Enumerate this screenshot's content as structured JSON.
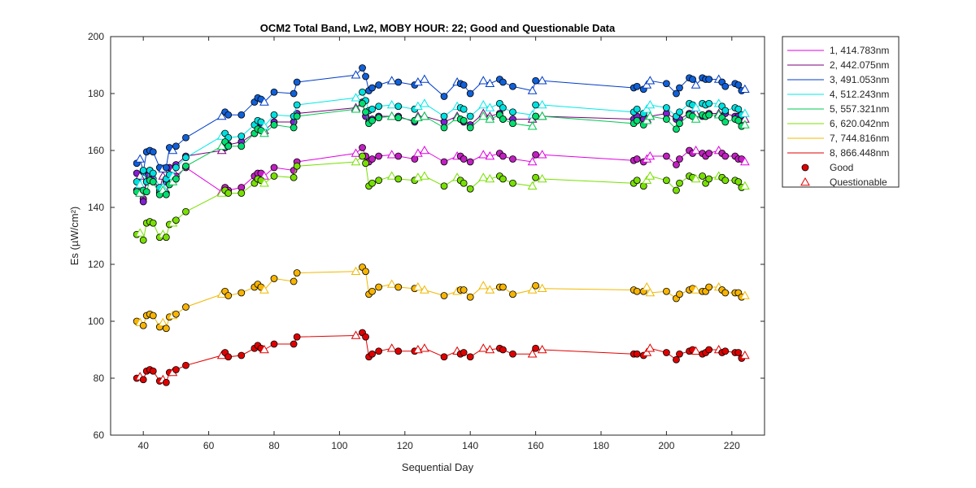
{
  "chart_data": {
    "type": "line",
    "title": "OCM2 Total Band,  Lw2, MOBY HOUR: 22;  Good and Questionable Data",
    "xlabel": "Sequential Day",
    "ylabel": "Es (µW/cm²)",
    "xlim": [
      30,
      230
    ],
    "ylim": [
      60,
      200
    ],
    "xticks": [
      40,
      60,
      80,
      100,
      120,
      140,
      160,
      180,
      200,
      220
    ],
    "yticks": [
      60,
      80,
      100,
      120,
      140,
      160,
      180,
      200
    ],
    "grid": false,
    "legend_position": "outside-top-right",
    "x": [
      38,
      39,
      40,
      41,
      42,
      43,
      45,
      46,
      47,
      48,
      49,
      50,
      53,
      64,
      65,
      66,
      70,
      74,
      75,
      76,
      77,
      80,
      86,
      87,
      105,
      107,
      108,
      109,
      110,
      112,
      116,
      118,
      123,
      124,
      126,
      132,
      136,
      137,
      138,
      140,
      144,
      146,
      149,
      150,
      153,
      159,
      160,
      162,
      190,
      191,
      193,
      194,
      195,
      200,
      203,
      204,
      207,
      208,
      209,
      211,
      212,
      213,
      216,
      217,
      218,
      221,
      222,
      223,
      224
    ],
    "quality": [
      "G",
      "Q",
      "G",
      "G",
      "G",
      "G",
      "G",
      "Q",
      "G",
      "G",
      "Q",
      "G",
      "G",
      "Q",
      "G",
      "G",
      "G",
      "G",
      "G",
      "G",
      "Q",
      "G",
      "G",
      "G",
      "Q",
      "G",
      "G",
      "G",
      "G",
      "G",
      "Q",
      "G",
      "G",
      "Q",
      "Q",
      "G",
      "Q",
      "G",
      "G",
      "G",
      "Q",
      "Q",
      "G",
      "G",
      "G",
      "Q",
      "G",
      "Q",
      "G",
      "G",
      "G",
      "Q",
      "Q",
      "G",
      "G",
      "G",
      "G",
      "G",
      "Q",
      "G",
      "G",
      "G",
      "Q",
      "G",
      "G",
      "G",
      "G",
      "G",
      "Q"
    ],
    "series": [
      {
        "name": "1, 414.783nm",
        "color": "#e000e0",
        "marker_color": "#c020c0",
        "values": [
          146,
          145,
          143,
          149,
          150,
          149,
          145,
          146,
          145,
          150,
          150,
          151,
          154,
          145.5,
          147,
          146,
          147,
          151,
          152,
          152,
          151,
          154,
          153,
          156,
          159,
          161,
          158,
          156,
          157,
          158,
          158.5,
          158,
          157,
          159,
          160,
          156,
          158,
          158,
          157,
          156,
          158.5,
          158,
          159,
          158,
          157,
          156,
          158.5,
          158.5,
          156.5,
          157,
          156,
          157,
          158,
          158,
          155,
          157,
          160,
          159,
          160,
          159,
          158,
          159,
          160,
          159,
          158,
          158,
          157,
          157,
          156
        ]
      },
      {
        "name": "2, 442.075nm",
        "color": "#7a007a",
        "marker_color": "#8020d0",
        "values": [
          152,
          151,
          142,
          152,
          153,
          150,
          146,
          151,
          149,
          154,
          153,
          155,
          158,
          160,
          161,
          162,
          163,
          166,
          168,
          168,
          167,
          170,
          170,
          173,
          175,
          177,
          172,
          170,
          171,
          172,
          172,
          172,
          170,
          172,
          172,
          170,
          172,
          171,
          170,
          169,
          173,
          172,
          173,
          171,
          171,
          171,
          172,
          172,
          171,
          172,
          171,
          171,
          172,
          173,
          171,
          171,
          173,
          173,
          173,
          172,
          172,
          173,
          173,
          172,
          173,
          172,
          172,
          171,
          171
        ]
      },
      {
        "name": "3, 491.053nm",
        "color": "#003cc8",
        "marker_color": "#1060d8",
        "values": [
          155.5,
          157,
          152.5,
          159.5,
          160,
          159.5,
          154,
          153.5,
          154,
          161,
          160,
          161.5,
          164.5,
          172,
          173.5,
          172.5,
          172.5,
          177,
          178.5,
          178,
          177,
          180.5,
          180,
          184,
          186.5,
          189,
          186,
          181,
          182,
          183,
          184.5,
          184,
          183,
          184,
          185,
          179,
          184,
          183.5,
          183,
          180,
          184.5,
          183.5,
          185,
          184,
          182.5,
          181,
          184.5,
          184.5,
          182,
          182.5,
          181.5,
          183,
          184.5,
          183.5,
          180,
          182,
          185.5,
          185,
          183,
          185.5,
          185,
          185,
          185,
          184,
          182.5,
          183.5,
          183,
          181,
          181.5
        ]
      },
      {
        "name": "4, 512.243nm",
        "color": "#00e8e8",
        "marker_color": "#00e0e0",
        "values": [
          149,
          148,
          153,
          149,
          153,
          152,
          147,
          147,
          150,
          151.5,
          151,
          154,
          157.5,
          165,
          166,
          164.5,
          165,
          169,
          170.5,
          170,
          168.5,
          172.5,
          172,
          176,
          178.5,
          180.5,
          177.5,
          174,
          174.5,
          175.5,
          176,
          175.5,
          174.5,
          175.5,
          176.5,
          172,
          175.5,
          175,
          174.5,
          172,
          176,
          175,
          176.5,
          175,
          173.5,
          172.5,
          176,
          176,
          173.5,
          174.5,
          173,
          174.5,
          176,
          175,
          172,
          173.5,
          176.5,
          176,
          175,
          176.5,
          176,
          176.5,
          176.5,
          175.5,
          174,
          175,
          174.5,
          172.5,
          173
        ]
      },
      {
        "name": "5, 557.321nm",
        "color": "#00c850",
        "marker_color": "#00e070",
        "values": [
          145.5,
          145,
          146,
          145.5,
          149.5,
          149,
          144.5,
          146,
          144.5,
          148,
          149,
          150,
          154.5,
          161.5,
          163,
          161.5,
          161.5,
          166,
          167.5,
          167,
          166,
          169,
          168,
          172,
          174.5,
          176.5,
          173.5,
          169.5,
          170.5,
          171.5,
          172,
          171.5,
          170.5,
          171.5,
          172,
          168,
          171.5,
          171,
          170.5,
          168,
          172,
          171,
          172.5,
          171,
          169.5,
          168.5,
          172,
          172,
          169.5,
          170.5,
          169,
          170.5,
          172,
          171,
          167.5,
          169.5,
          172.5,
          172,
          171,
          172.5,
          172,
          172.5,
          172.5,
          171.5,
          170,
          171,
          170.5,
          168.5,
          169
        ]
      },
      {
        "name": "6, 620.042nm",
        "color": "#78e000",
        "marker_color": "#78e000",
        "values": [
          130.5,
          131,
          128.5,
          134.5,
          135,
          134.5,
          129.5,
          130.5,
          129.5,
          134,
          134.5,
          135.5,
          138.5,
          145,
          146,
          145,
          145,
          148.5,
          150,
          149.5,
          148.5,
          151,
          150.5,
          154.5,
          156,
          158,
          155.5,
          147.5,
          148.5,
          149.5,
          151,
          150,
          149.5,
          150.5,
          151,
          147.5,
          150.5,
          149.5,
          148.5,
          146.5,
          150.5,
          150,
          151,
          150,
          148.5,
          147.5,
          150.5,
          150,
          148.5,
          149.5,
          147.5,
          149.5,
          151,
          149.5,
          146,
          148.5,
          151,
          150.5,
          150,
          151,
          148.5,
          150,
          151,
          150.5,
          149.5,
          149.5,
          149,
          147,
          147.5
        ]
      },
      {
        "name": "7, 744.816nm",
        "color": "#f0b800",
        "marker_color": "#f8b400",
        "values": [
          100,
          99.5,
          98.5,
          102,
          102.5,
          102,
          98,
          99.5,
          97.5,
          101.5,
          102,
          102.5,
          105,
          109.5,
          110.5,
          109,
          110,
          112,
          113,
          112,
          111,
          115,
          114,
          117,
          117.5,
          119,
          117.5,
          109.5,
          110.5,
          112,
          113,
          112,
          111.5,
          112,
          111,
          109,
          110.5,
          111,
          111,
          108.5,
          112.5,
          111,
          112,
          112,
          109.5,
          111,
          112.5,
          111.5,
          111,
          110.5,
          110.5,
          112,
          110,
          110.5,
          108,
          109.5,
          111,
          111.5,
          111,
          110.5,
          110.5,
          112,
          112,
          111,
          110,
          110,
          110,
          108.5,
          109
        ]
      },
      {
        "name": "8, 866.448nm",
        "color": "#e00000",
        "marker_color": "#e00000",
        "values": [
          80,
          80.5,
          79.5,
          82.5,
          83,
          82.5,
          79,
          79.5,
          78.5,
          82,
          82,
          83,
          84.5,
          88,
          89,
          87.5,
          88,
          90.5,
          91.5,
          90.5,
          90,
          92,
          92,
          94.5,
          95,
          96,
          94.5,
          87.5,
          88.5,
          89.5,
          90.5,
          89.5,
          89.5,
          90,
          90.5,
          87.5,
          89.5,
          88.5,
          89,
          87.5,
          90.5,
          90,
          90.5,
          90,
          88.5,
          88.5,
          90.5,
          90,
          88.5,
          88.5,
          88,
          89,
          90.5,
          89,
          86.5,
          88.5,
          89.5,
          90,
          89.5,
          88.5,
          89,
          90,
          90,
          89,
          89.5,
          89,
          89,
          87,
          88
        ]
      }
    ],
    "legend_extra": [
      {
        "label": "Good",
        "marker": "filled-circle",
        "color": "#e00000"
      },
      {
        "label": "Questionable",
        "marker": "open-triangle",
        "color": "#e00000"
      }
    ]
  }
}
